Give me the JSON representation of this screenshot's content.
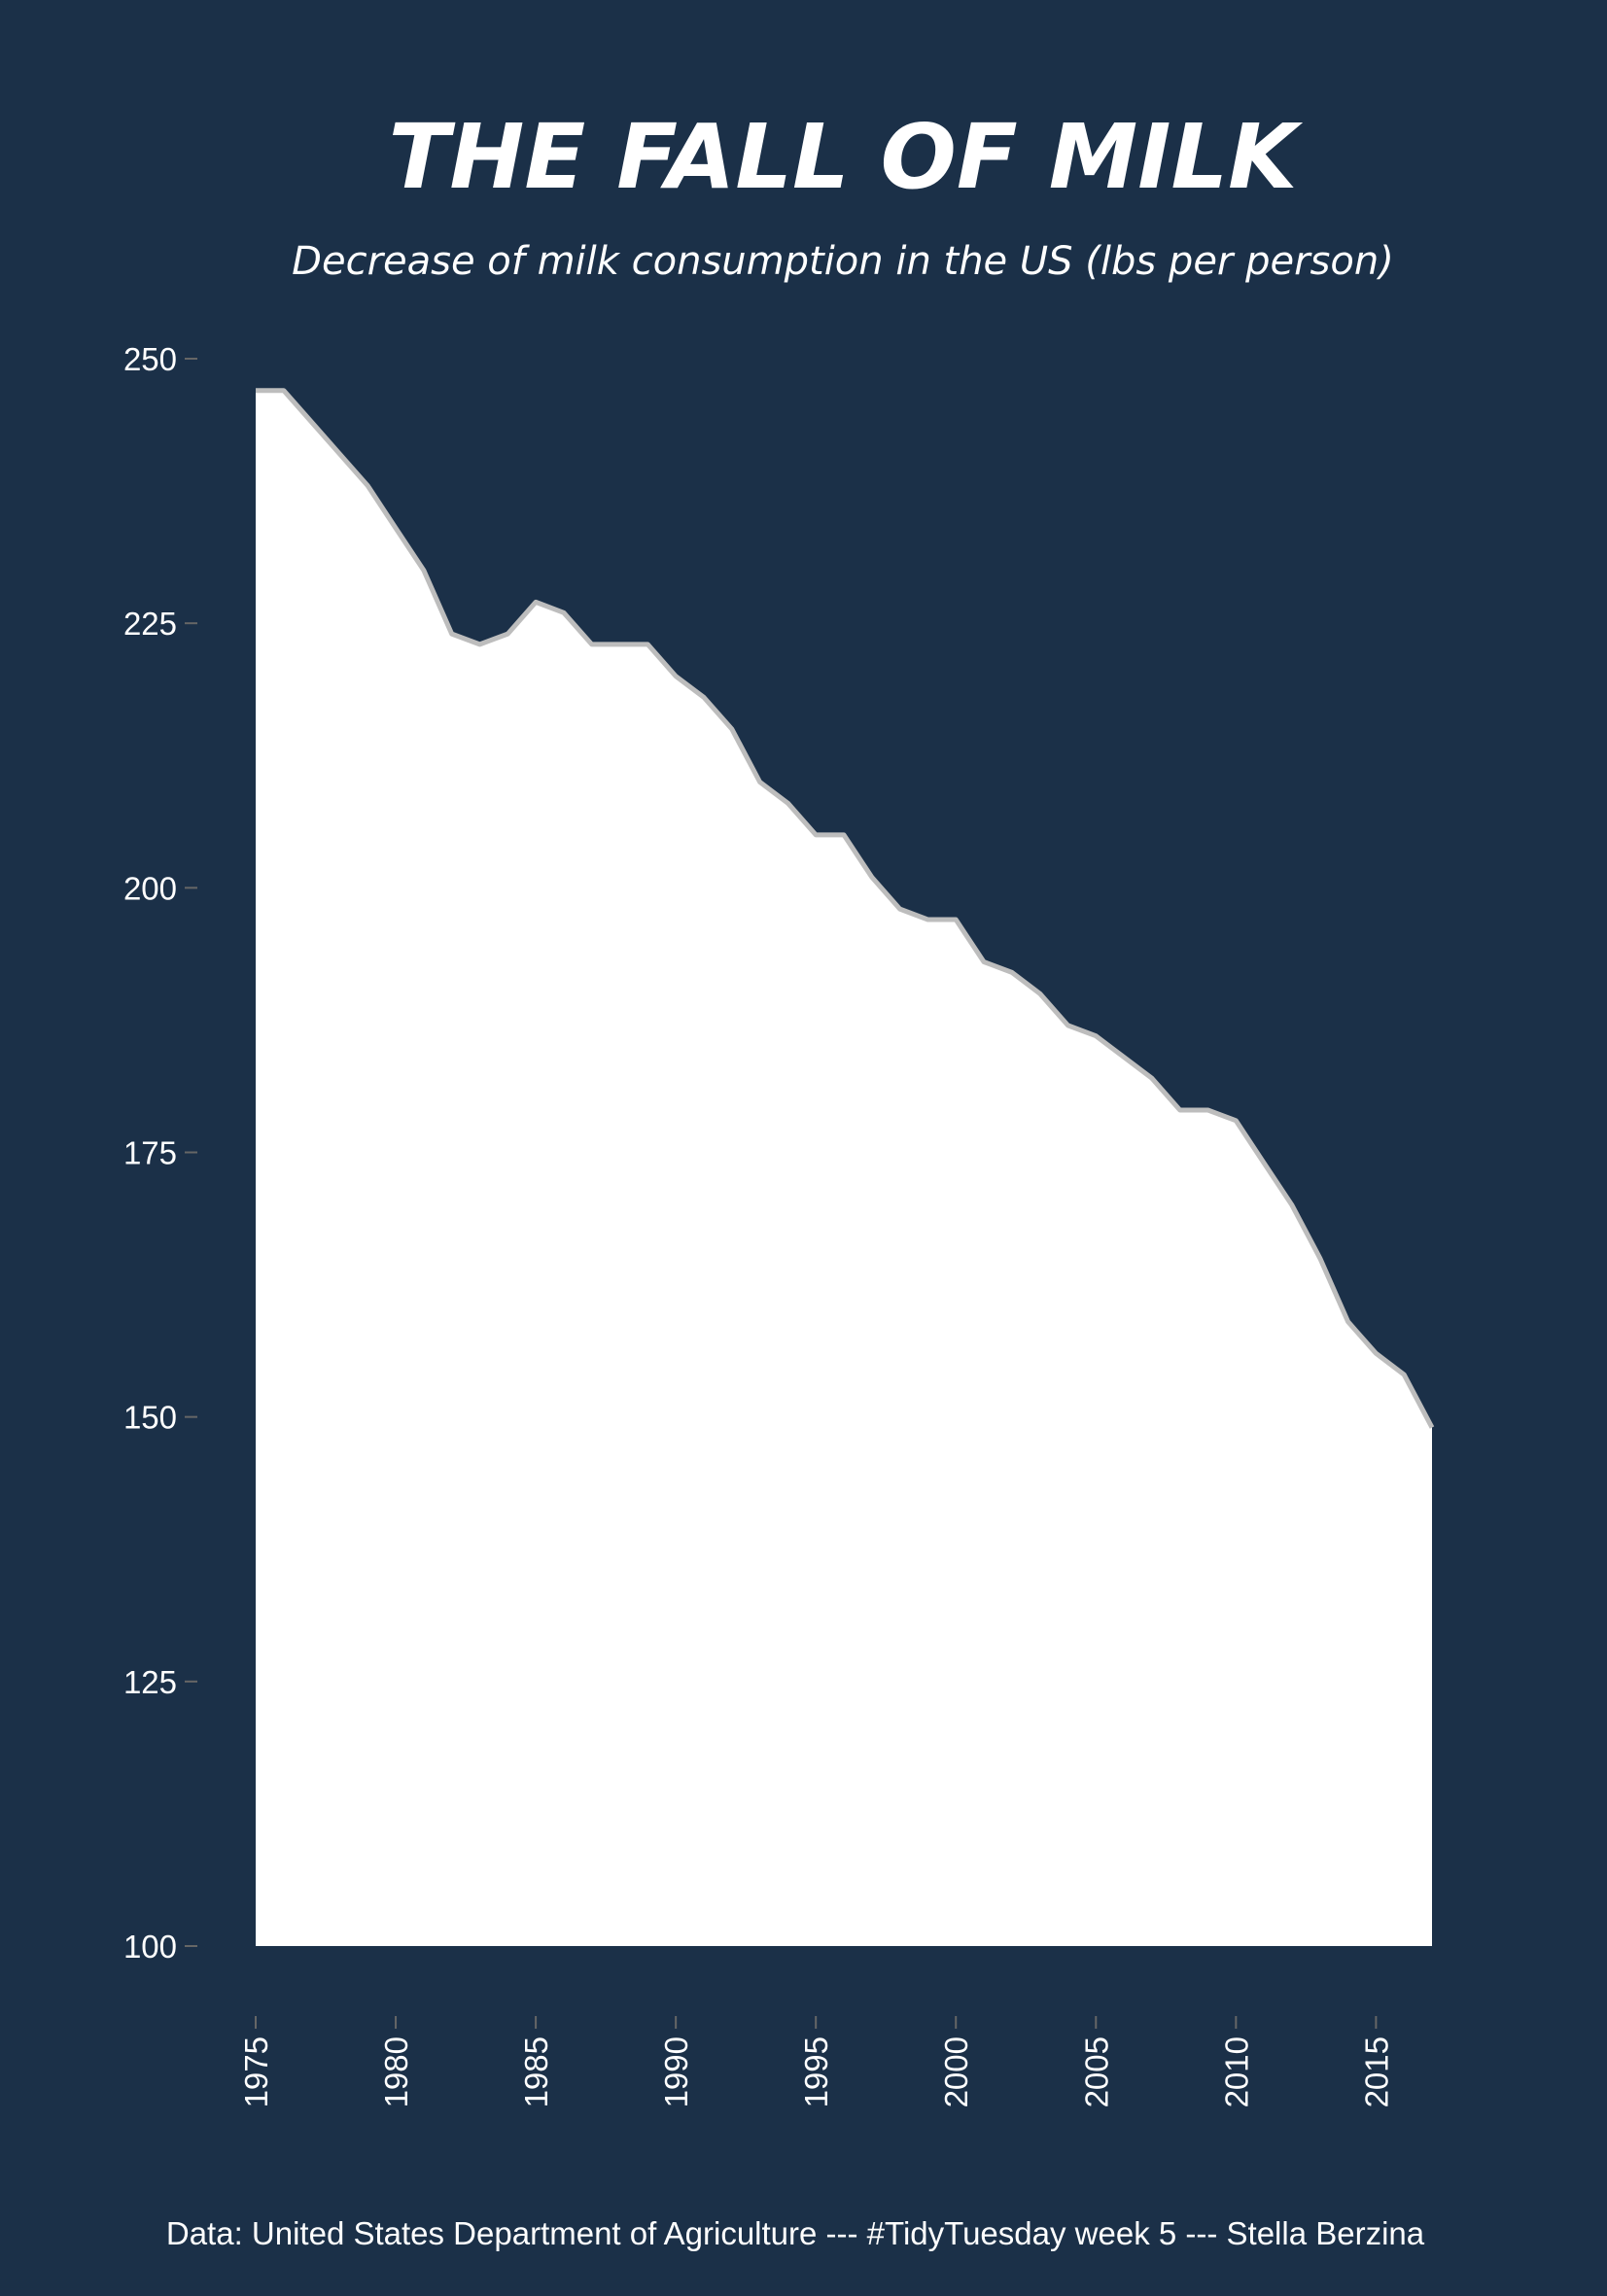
{
  "chart_data": {
    "type": "area",
    "title": "THE FALL OF MILK",
    "subtitle": "Decrease of milk consumption in the US (lbs per person)",
    "caption": "Data: United States Department of Agriculture --- #TidyTuesday week 5 --- Stella Berzina",
    "xlabel": "",
    "ylabel": "",
    "xlim": [
      1975,
      2017
    ],
    "ylim": [
      100,
      250
    ],
    "x_ticks": [
      1975,
      1980,
      1985,
      1990,
      1995,
      2000,
      2005,
      2010,
      2015
    ],
    "y_ticks": [
      100,
      125,
      150,
      175,
      200,
      225,
      250
    ],
    "grid": false,
    "legend": "none",
    "colors": {
      "background": "#1b3048",
      "area_fill": "#ffffff",
      "line": "#bdbdbd",
      "text": "#ffffff"
    },
    "series": [
      {
        "x": [
          1975,
          1976,
          1977,
          1978,
          1979,
          1980,
          1981,
          1982,
          1983,
          1984,
          1985,
          1986,
          1987,
          1988,
          1989,
          1990,
          1991,
          1992,
          1993,
          1994,
          1995,
          1996,
          1997,
          1998,
          1999,
          2000,
          2001,
          2002,
          2003,
          2004,
          2005,
          2006,
          2007,
          2008,
          2009,
          2010,
          2011,
          2012,
          2013,
          2014,
          2015,
          2016,
          2017
        ],
        "values": [
          247,
          247,
          244,
          241,
          238,
          234,
          230,
          224,
          223,
          224,
          227,
          226,
          223,
          223,
          223,
          220,
          218,
          215,
          210,
          208,
          205,
          205,
          201,
          198,
          197,
          197,
          193,
          192,
          190,
          187,
          186,
          184,
          182,
          179,
          179,
          178,
          174,
          170,
          165,
          159,
          156,
          154,
          149
        ]
      }
    ]
  }
}
